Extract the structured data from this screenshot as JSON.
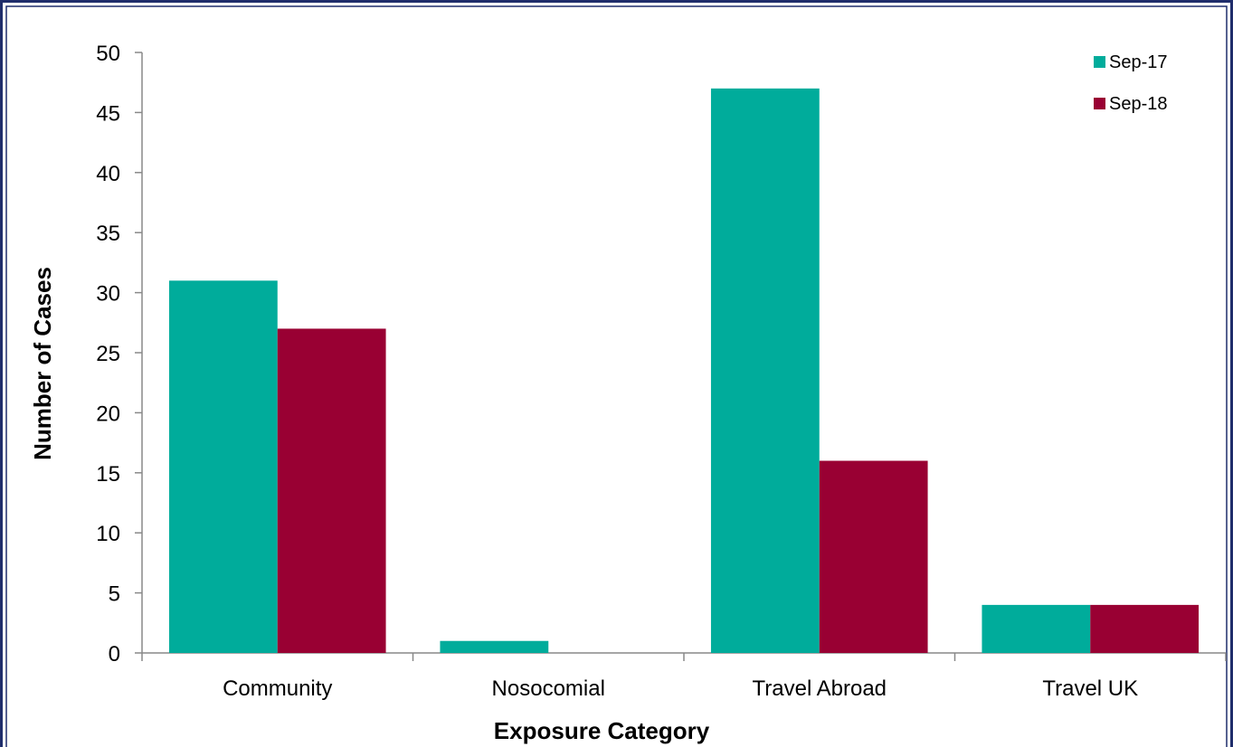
{
  "chart_data": {
    "type": "bar",
    "title": "",
    "xlabel": "Exposure Category",
    "ylabel": "Number of Cases",
    "categories": [
      "Community",
      "Nosocomial",
      "Travel Abroad",
      "Travel UK"
    ],
    "series": [
      {
        "name": "Sep-17",
        "values": [
          31,
          1,
          47,
          4
        ],
        "color": "#00ac9b"
      },
      {
        "name": "Sep-18",
        "values": [
          27,
          0,
          16,
          4
        ],
        "color": "#990033"
      }
    ],
    "ylim": [
      0,
      50
    ],
    "yticks": [
      0,
      5,
      10,
      15,
      20,
      25,
      30,
      35,
      40,
      45,
      50
    ],
    "grid": false,
    "legend_position": "top-right"
  },
  "colors": {
    "frame_border": "#1f2d6b",
    "axis": "#888888"
  }
}
